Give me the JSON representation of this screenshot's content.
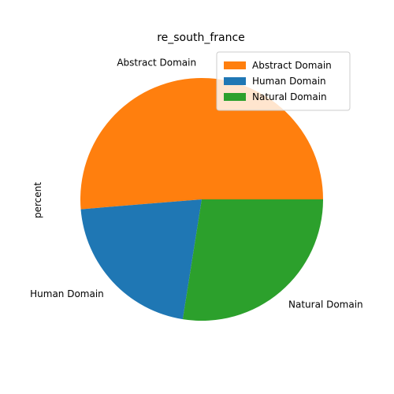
{
  "chart_data": {
    "type": "pie",
    "title": "re_south_france",
    "ylabel": "percent",
    "legend_position": "top-right",
    "slices": [
      {
        "label": "Abstract Domain",
        "value": 51.3,
        "color": "#ff7f0e"
      },
      {
        "label": "Human Domain",
        "value": 21.2,
        "color": "#1f77b4"
      },
      {
        "label": "Natural Domain",
        "value": 27.5,
        "color": "#2ca02c"
      }
    ]
  }
}
